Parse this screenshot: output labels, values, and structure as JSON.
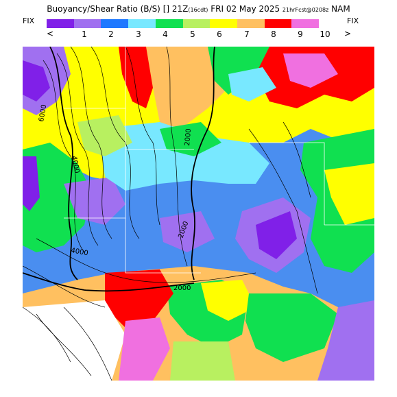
{
  "header": {
    "title_main": "Buoyancy/Shear Ratio (B/S)",
    "title_mid": "[] 21Z",
    "title_cdt": "(16cdt)",
    "title_date": "FRI 02 May 2025",
    "title_fcst": "21hrFcst@0208z",
    "title_model": "NAM"
  },
  "fix_left": "FIX",
  "fix_right": "FIX",
  "nav": {
    "prev": "<",
    "next": ">"
  },
  "legend": {
    "colors": [
      "#8020e8",
      "#a070f0",
      "#1e78ff",
      "#78e8ff",
      "#10e050",
      "#b8f060",
      "#ffff00",
      "#ffc060",
      "#ff0000",
      "#f070e0"
    ],
    "ticks": [
      "1",
      "2",
      "3",
      "4",
      "5",
      "6",
      "7",
      "8",
      "9",
      "10"
    ]
  },
  "map": {
    "contour_labels": [
      "6000",
      "4000",
      "4000",
      "2000",
      "2000",
      "2000"
    ]
  }
}
